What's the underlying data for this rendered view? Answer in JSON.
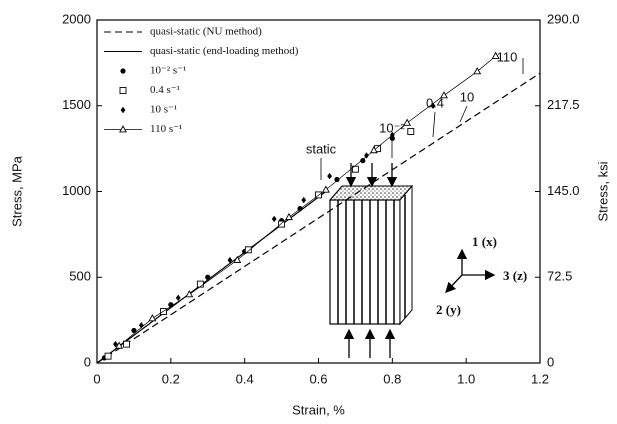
{
  "chart_data": {
    "type": "scatter",
    "xlabel": "Strain, %",
    "ylabel": "Stress, MPa",
    "y2label": "Stress, ksi",
    "xlim": [
      0,
      1.2
    ],
    "xticks": [
      0,
      0.2,
      0.4,
      0.6,
      0.8,
      {
        "value": 1.0,
        "label": "1.0"
      },
      1.2
    ],
    "ylim": [
      0,
      2000
    ],
    "yticks": [
      0,
      500,
      1000,
      1500,
      2000
    ],
    "y2lim": [
      0,
      290
    ],
    "y2ticks": [
      0,
      72.5,
      {
        "value": 145,
        "label": "145.0"
      },
      217.5,
      {
        "value": 290,
        "label": "290.0"
      }
    ],
    "legend": "upper left",
    "series": [
      {
        "name": "quasi-static (NU method)",
        "color": "#000000",
        "style": "dashed",
        "marker": "none",
        "x": [
          0,
          1.2
        ],
        "values": [
          0,
          1690
        ]
      },
      {
        "name": "quasi-static (end-loading method)",
        "color": "#000000",
        "style": "solid",
        "marker": "none",
        "x": [
          0,
          0.62
        ],
        "values": [
          0,
          1000
        ]
      },
      {
        "name": "10⁻² s⁻¹",
        "color": "#000000",
        "style": "none",
        "marker": "circle",
        "x": [
          0.02,
          0.1,
          0.2,
          0.3,
          0.4,
          0.5,
          0.55,
          0.65,
          0.72,
          0.8
        ],
        "values": [
          30,
          190,
          340,
          500,
          650,
          830,
          900,
          1070,
          1180,
          1310
        ]
      },
      {
        "name": "0.4 s⁻¹",
        "color": "#000000",
        "style": "none",
        "marker": "square",
        "x": [
          0.03,
          0.08,
          0.18,
          0.28,
          0.41,
          0.5,
          0.6,
          0.7,
          0.76,
          0.85
        ],
        "values": [
          40,
          110,
          300,
          460,
          660,
          810,
          980,
          1130,
          1250,
          1350
        ]
      },
      {
        "name": "10 s⁻¹",
        "color": "#000000",
        "style": "none",
        "marker": "diamond",
        "x": [
          0.05,
          0.12,
          0.22,
          0.36,
          0.48,
          0.56,
          0.63,
          0.73,
          0.8,
          0.91
        ],
        "values": [
          110,
          220,
          380,
          600,
          840,
          950,
          1090,
          1210,
          1330,
          1500
        ]
      },
      {
        "name": "110 s⁻¹",
        "color": "#000000",
        "style": "thin",
        "marker": "triangle",
        "x": [
          0.06,
          0.15,
          0.25,
          0.38,
          0.52,
          0.62,
          0.75,
          0.84,
          0.94,
          1.03,
          1.08
        ],
        "values": [
          100,
          260,
          400,
          600,
          850,
          1010,
          1240,
          1400,
          1560,
          1700,
          1790
        ]
      }
    ],
    "annotations": [
      "static",
      "10⁻²",
      "0.4",
      "10",
      "110"
    ],
    "inset_labels": [
      "1 (x)",
      "3 (z)",
      "2 (y)"
    ]
  }
}
